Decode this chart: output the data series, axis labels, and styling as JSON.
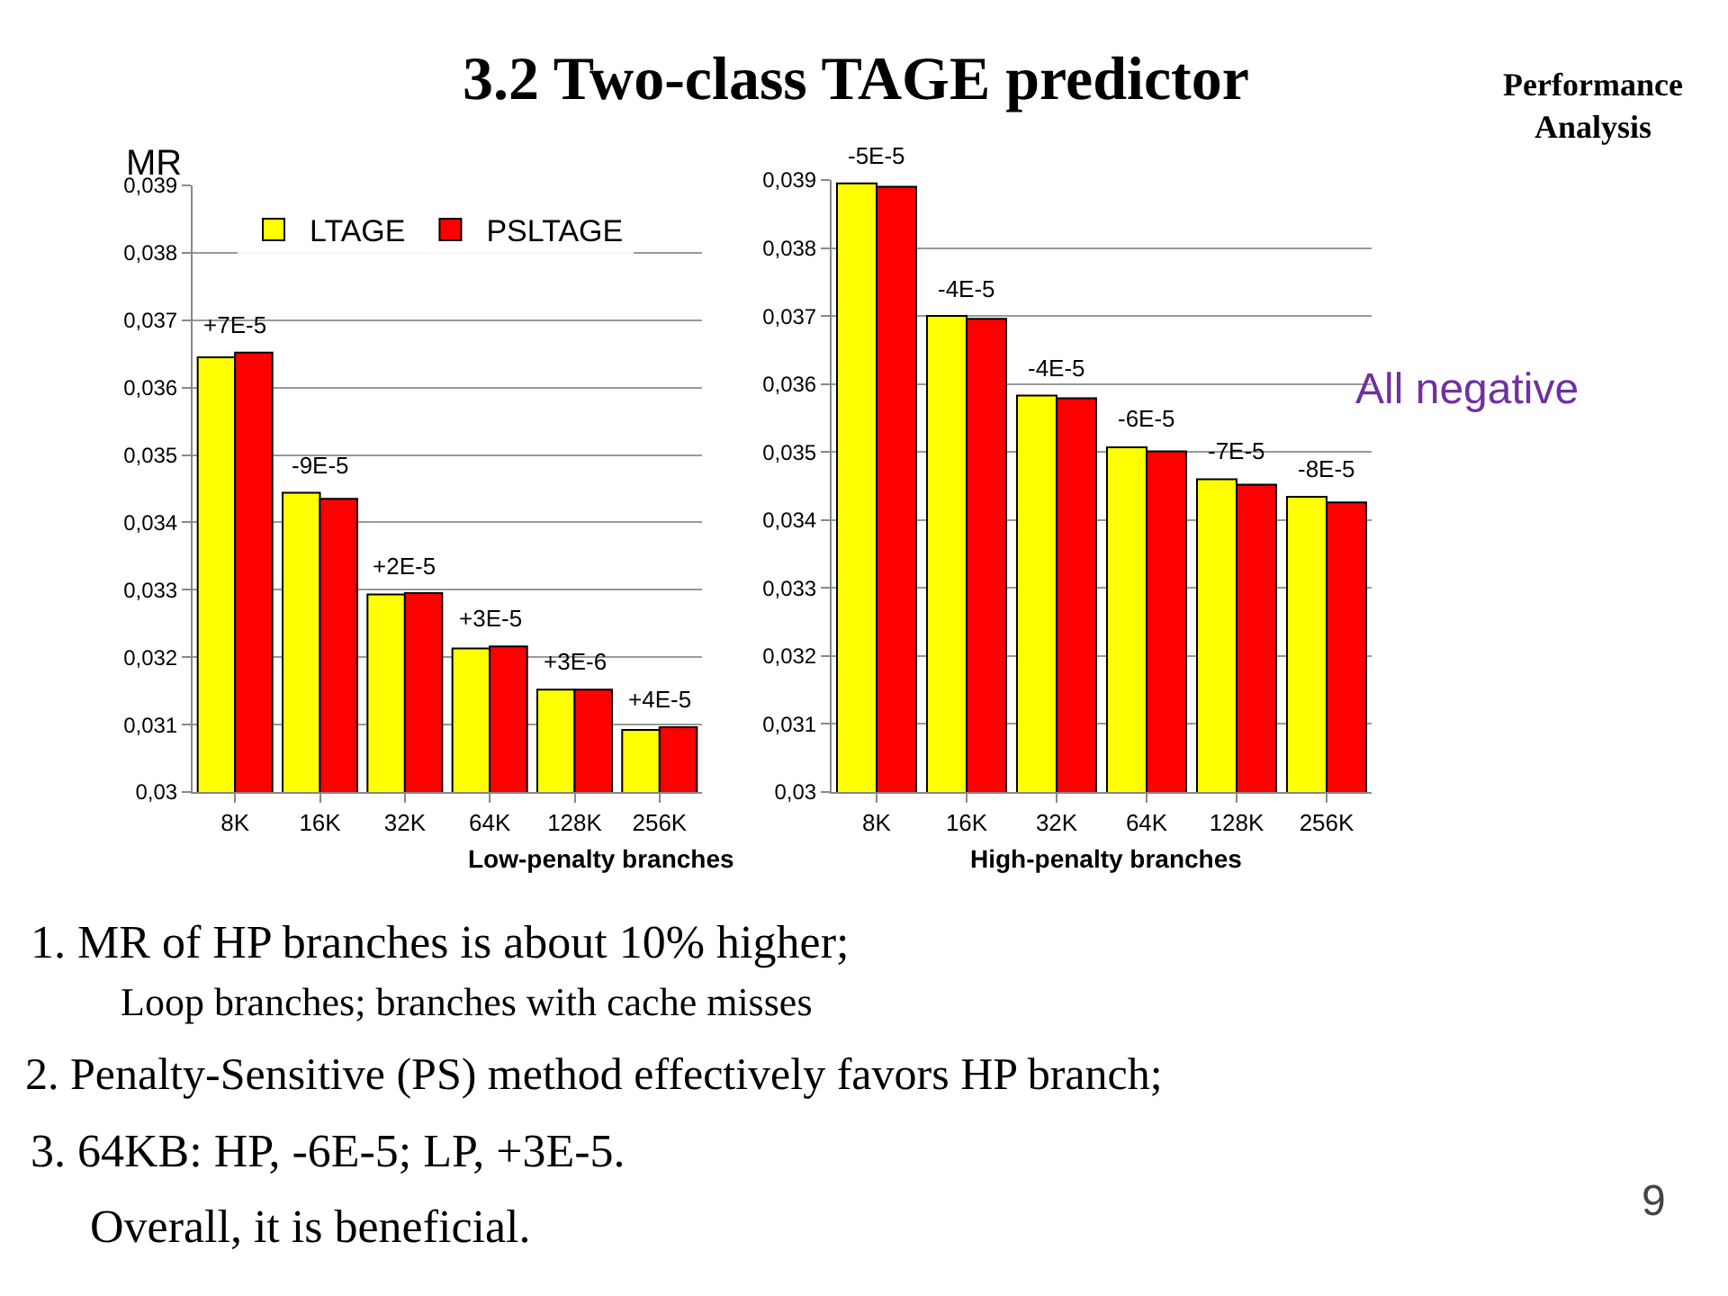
{
  "chart_data": [
    {
      "type": "bar",
      "title": "3.2 Two-class TAGE predictor",
      "ylabel": "MR",
      "xlabel": "Low-penalty branches",
      "categories": [
        "8K",
        "16K",
        "32K",
        "64K",
        "128K",
        "256K"
      ],
      "series": [
        {
          "name": "LTAGE",
          "color": "#ffff00",
          "values": [
            0.03645,
            0.03444,
            0.03293,
            0.03213,
            0.03152,
            0.03092
          ]
        },
        {
          "name": "PSLTAGE",
          "color": "#ff0000",
          "values": [
            0.03652,
            0.03435,
            0.03295,
            0.03216,
            0.03152,
            0.03096
          ]
        }
      ],
      "ylim": [
        0.03,
        0.039
      ],
      "yticks": [
        {
          "value": 0.03,
          "label": "0,03"
        },
        {
          "value": 0.031,
          "label": "0,031"
        },
        {
          "value": 0.032,
          "label": "0,032"
        },
        {
          "value": 0.033,
          "label": "0,033"
        },
        {
          "value": 0.034,
          "label": "0,034"
        },
        {
          "value": 0.035,
          "label": "0,035"
        },
        {
          "value": 0.036,
          "label": "0,036"
        },
        {
          "value": 0.037,
          "label": "0,037"
        },
        {
          "value": 0.038,
          "label": "0,038"
        },
        {
          "value": 0.039,
          "label": "0,039"
        }
      ],
      "grid": "y",
      "legend": "top",
      "annotations": [
        {
          "text": "+7E-5",
          "x": "8K",
          "y": 0.03652
        },
        {
          "text": "-9E-5",
          "x": "16K",
          "y": 0.03444
        },
        {
          "text": "+2E-5",
          "x": "32K",
          "y": 0.03295
        },
        {
          "text": "+3E-5",
          "x": "64K",
          "y": 0.03216
        },
        {
          "text": "+3E-6",
          "x": "128K",
          "y": 0.03152
        },
        {
          "text": "+4E-5",
          "x": "256K",
          "y": 0.03096
        },
        "Performance\nAnalysis",
        "1. MR of HP branches is about 10% higher;",
        "Loop branches; branches with cache misses",
        "2. Penalty-Sensitive (PS) method effectively favors HP branch;",
        "3. 64KB: HP, -6E-5; LP, +3E-5.",
        "Overall, it is beneficial.",
        "9"
      ]
    },
    {
      "type": "bar",
      "xlabel": "High-penalty branches",
      "categories": [
        "8K",
        "16K",
        "32K",
        "64K",
        "128K",
        "256K"
      ],
      "series": [
        {
          "color": "#ffff00",
          "values": [
            0.03895,
            0.037,
            0.03583,
            0.03507,
            0.0346,
            0.03434
          ]
        },
        {
          "color": "#ff0000",
          "values": [
            0.0389,
            0.03696,
            0.03579,
            0.03501,
            0.03452,
            0.03426
          ]
        }
      ],
      "ylim": [
        0.03,
        0.039
      ],
      "yticks": [
        {
          "value": 0.03,
          "label": "0,03"
        },
        {
          "value": 0.031,
          "label": "0,031"
        },
        {
          "value": 0.032,
          "label": "0,032"
        },
        {
          "value": 0.033,
          "label": "0,033"
        },
        {
          "value": 0.034,
          "label": "0,034"
        },
        {
          "value": 0.035,
          "label": "0,035"
        },
        {
          "value": 0.036,
          "label": "0,036"
        },
        {
          "value": 0.037,
          "label": "0,037"
        },
        {
          "value": 0.038,
          "label": "0,038"
        },
        {
          "value": 0.039,
          "label": "0,039"
        }
      ],
      "grid": "y",
      "annotations": [
        {
          "text": "-5E-5",
          "x": "8K",
          "y": 0.03895
        },
        {
          "text": "-4E-5",
          "x": "16K",
          "y": 0.037
        },
        {
          "text": "-4E-5",
          "x": "32K",
          "y": 0.03583
        },
        {
          "text": "-6E-5",
          "x": "64K",
          "y": 0.03507
        },
        {
          "text": "-7E-5",
          "x": "128K",
          "y": 0.0346
        },
        {
          "text": "-8E-5",
          "x": "256K",
          "y": 0.03434
        },
        "All negative"
      ]
    }
  ]
}
